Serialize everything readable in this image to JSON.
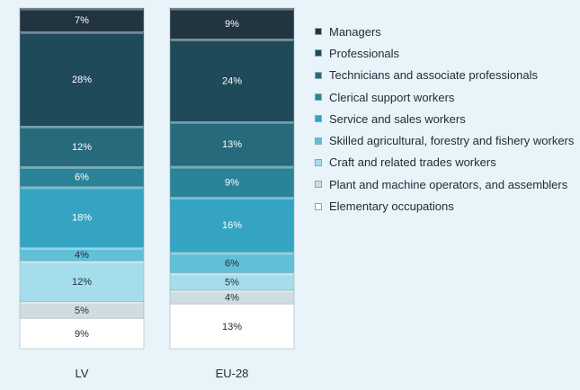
{
  "chart_data": {
    "type": "bar",
    "stacked": true,
    "categories": [
      "LV",
      "EU-28"
    ],
    "series": [
      {
        "name": "Managers",
        "values": [
          7,
          9
        ],
        "color": "#22343f",
        "text": "#ffffff"
      },
      {
        "name": "Professionals",
        "values": [
          28,
          24
        ],
        "color": "#1f4a5a",
        "text": "#ffffff"
      },
      {
        "name": "Technicians and associate professionals",
        "values": [
          12,
          13
        ],
        "color": "#276a7c",
        "text": "#ffffff"
      },
      {
        "name": "Clerical support workers",
        "values": [
          6,
          9
        ],
        "color": "#2a8499",
        "text": "#ffffff"
      },
      {
        "name": "Service and sales workers",
        "values": [
          18,
          16
        ],
        "color": "#35a3c2",
        "text": "#ffffff"
      },
      {
        "name": "Skilled agricultural, forestry and fishery workers",
        "values": [
          4,
          6
        ],
        "color": "#62bfd8",
        "text": "#1f2a33"
      },
      {
        "name": "Craft and related trades workers",
        "values": [
          12,
          5
        ],
        "color": "#a5ddec",
        "text": "#1f2a33"
      },
      {
        "name": "Plant and machine operators, and assemblers",
        "values": [
          5,
          4
        ],
        "color": "#cfdde2",
        "text": "#1f2a33"
      },
      {
        "name": "Elementary occupations",
        "values": [
          9,
          13
        ],
        "color": "#ffffff",
        "text": "#1f2a33"
      }
    ],
    "value_suffix": "%",
    "legend_position": "right"
  }
}
